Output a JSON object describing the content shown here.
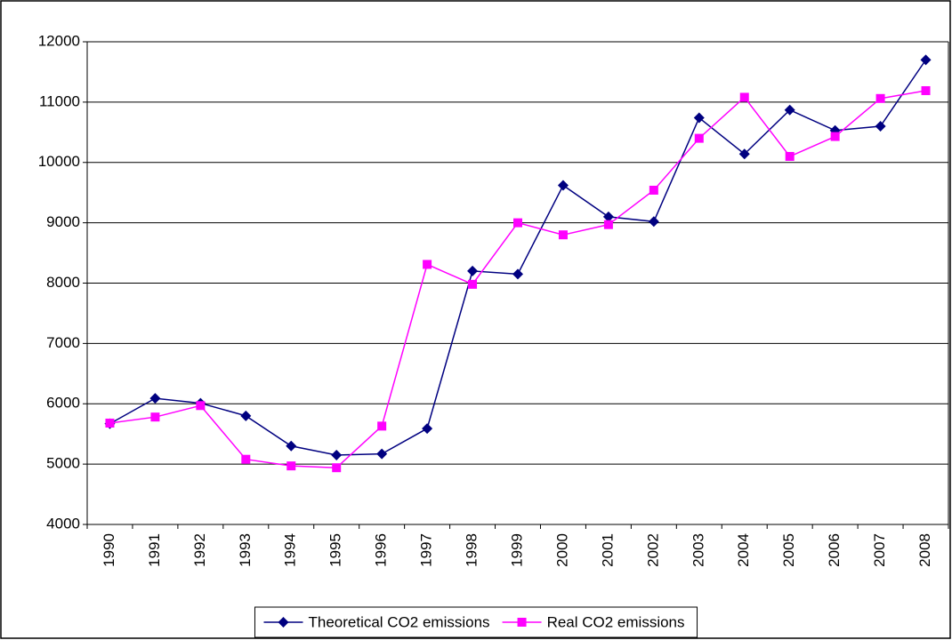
{
  "chart_data": {
    "type": "line",
    "categories": [
      "1990",
      "1991",
      "1992",
      "1993",
      "1994",
      "1995",
      "1996",
      "1997",
      "1998",
      "1999",
      "2000",
      "2001",
      "2002",
      "2003",
      "2004",
      "2005",
      "2006",
      "2007",
      "2008"
    ],
    "series": [
      {
        "name": "Theoretical CO2 emissions",
        "color": "#000080",
        "marker": "diamond",
        "values": [
          5670,
          6090,
          6010,
          5800,
          5300,
          5150,
          5170,
          5590,
          8200,
          8150,
          9620,
          9100,
          9020,
          10740,
          10140,
          10870,
          10530,
          10600,
          11700
        ]
      },
      {
        "name": "Real CO2 emissions",
        "color": "#ff00ff",
        "marker": "square",
        "values": [
          5680,
          5780,
          5970,
          5080,
          4970,
          4940,
          5630,
          8310,
          7980,
          9000,
          8800,
          8970,
          9540,
          10400,
          11080,
          10100,
          10430,
          11060,
          11190
        ]
      }
    ],
    "ylim": [
      4000,
      12000
    ],
    "yticks": [
      4000,
      5000,
      6000,
      7000,
      8000,
      9000,
      10000,
      11000,
      12000
    ],
    "grid": true,
    "legend": "bottom"
  }
}
